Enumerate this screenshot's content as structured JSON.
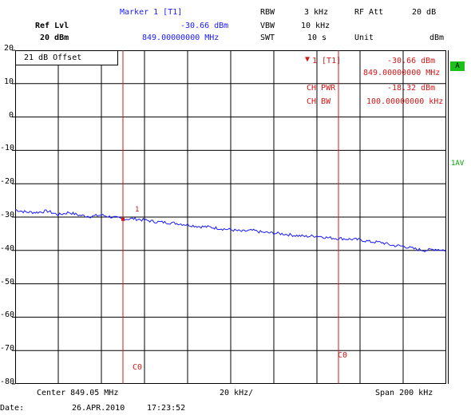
{
  "header": {
    "ref_lvl_label": "Ref Lvl",
    "ref_lvl_value": "20 dBm",
    "marker_title": "Marker 1 [T1]",
    "marker_level": "-30.66 dBm",
    "marker_freq": "849.00000000 MHz",
    "rbw_label": "RBW",
    "rbw_value": "3 kHz",
    "vbw_label": "VBW",
    "vbw_value": "10 kHz",
    "swt_label": "SWT",
    "swt_value": "10 s",
    "rf_att_label": "RF Att",
    "rf_att_value": "20 dB",
    "unit_label": "Unit",
    "unit_value": "dBm"
  },
  "plot": {
    "offset_text": "21 dB Offset",
    "marker_info": {
      "line1_label": "1 [T1]",
      "line1_value": "-30.66 dBm",
      "line2_value": "849.00000000 MHz",
      "ch_pwr_label": "CH PWR",
      "ch_pwr_value": "-18.32 dBm",
      "ch_bw_label": "CH BW",
      "ch_bw_value": "100.00000000 kHz"
    },
    "marker_number": "1",
    "c0_left": "C0",
    "c0_right": "C0",
    "badge_a": "A",
    "side_label": "1AV"
  },
  "footer": {
    "center": "Center 849.05 MHz",
    "per_div": "20 kHz/",
    "span": "Span 200 kHz",
    "date_label": "Date:",
    "date_value": "26.APR.2010",
    "time_value": "17:23:52"
  },
  "colors": {
    "trace": "#1a1aff",
    "marker": "#d01818",
    "grid": "#000000",
    "badge": "#19c119"
  },
  "chart_data": {
    "type": "line",
    "ylim": [
      -80,
      20
    ],
    "yticks": [
      20,
      10,
      0,
      -10,
      -20,
      -30,
      -40,
      -50,
      -60,
      -70,
      -80
    ],
    "xlim": [
      848.95,
      849.15
    ],
    "grid": true,
    "channel_lines_mhz": [
      849.0,
      849.1
    ],
    "marker": {
      "x": 849.0,
      "y": -30.66
    },
    "series": [
      {
        "x": [
          848.95,
          848.955,
          848.96,
          848.965,
          848.97,
          848.975,
          848.98,
          848.985,
          848.99,
          848.995,
          849.0,
          849.005,
          849.01,
          849.015,
          849.02,
          849.025,
          849.03,
          849.035,
          849.04,
          849.045,
          849.05,
          849.055,
          849.06,
          849.065,
          849.07,
          849.075,
          849.08,
          849.085,
          849.09,
          849.095,
          849.1,
          849.105,
          849.11,
          849.115,
          849.12,
          849.125,
          849.13,
          849.135,
          849.14,
          849.145,
          849.15
        ],
        "y": [
          -27.8,
          -28.5,
          -28.6,
          -28.2,
          -29.3,
          -28.6,
          -29.5,
          -29.8,
          -29.4,
          -30.0,
          -30.6,
          -30.5,
          -30.9,
          -31.4,
          -31.6,
          -31.9,
          -32.3,
          -32.8,
          -33.0,
          -33.4,
          -33.8,
          -34.3,
          -34.0,
          -34.6,
          -34.8,
          -35.1,
          -35.5,
          -35.8,
          -35.6,
          -36.2,
          -36.4,
          -36.6,
          -36.8,
          -37.4,
          -37.6,
          -38.5,
          -38.7,
          -39.5,
          -40.0,
          -39.6,
          -40.0
        ]
      }
    ]
  }
}
